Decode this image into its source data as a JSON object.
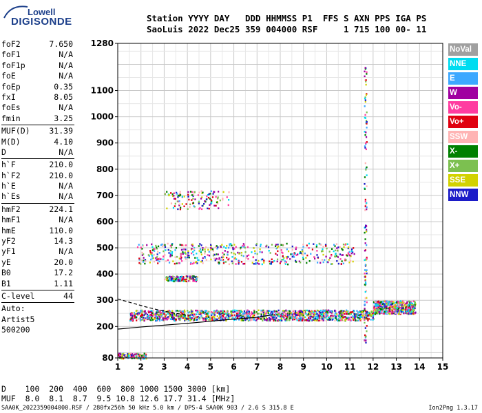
{
  "logo": {
    "top": "Lowell",
    "main": "DIGISONDE"
  },
  "header": {
    "line1": "Station YYYY DAY   DDD HHMMSS P1  FFS S AXN PPS IGA PS",
    "line2": "SaoLuis 2022 Dec25 359 004000 RSF     1 715 100 00- 11"
  },
  "params": {
    "group1": [
      {
        "key": "foF2",
        "value": "7.650"
      },
      {
        "key": "foF1",
        "value": "N/A"
      },
      {
        "key": "foF1p",
        "value": "N/A"
      },
      {
        "key": "foE",
        "value": "N/A"
      },
      {
        "key": "foEp",
        "value": "0.35"
      },
      {
        "key": "fxI",
        "value": "8.05"
      },
      {
        "key": "foEs",
        "value": "N/A"
      },
      {
        "key": "fmin",
        "value": "3.25"
      }
    ],
    "group2": [
      {
        "key": "MUF(D)",
        "value": "31.39"
      },
      {
        "key": "M(D)",
        "value": "4.10"
      },
      {
        "key": "D",
        "value": "N/A"
      }
    ],
    "group3": [
      {
        "key": "h`F",
        "value": "210.0"
      },
      {
        "key": "h`F2",
        "value": "210.0"
      },
      {
        "key": "h`E",
        "value": "N/A"
      },
      {
        "key": "h`Es",
        "value": "N/A"
      }
    ],
    "group4": [
      {
        "key": "hmF2",
        "value": "224.1"
      },
      {
        "key": "hmF1",
        "value": "N/A"
      },
      {
        "key": "hmE",
        "value": "110.0"
      },
      {
        "key": "yF2",
        "value": "14.3"
      },
      {
        "key": "yF1",
        "value": "N/A"
      },
      {
        "key": "yE",
        "value": "20.0"
      },
      {
        "key": "B0",
        "value": "17.2"
      },
      {
        "key": "B1",
        "value": "1.11"
      }
    ],
    "clevel": {
      "key": "C-level",
      "value": "44"
    },
    "auto": [
      "Auto:",
      "Artist5",
      "500200"
    ]
  },
  "legend": [
    {
      "label": "NoVal",
      "color": "#a0a0a0"
    },
    {
      "label": "NNE",
      "color": "#00dcf0"
    },
    {
      "label": "E",
      "color": "#3ca8ff"
    },
    {
      "label": "W",
      "color": "#a000a0"
    },
    {
      "label": "Vo-",
      "color": "#ff3ca0"
    },
    {
      "label": "Vo+",
      "color": "#e00010"
    },
    {
      "label": "SSW",
      "color": "#ffb4b4"
    },
    {
      "label": "X-",
      "color": "#008000"
    },
    {
      "label": "X+",
      "color": "#7cc050"
    },
    {
      "label": "SSE",
      "color": "#d2d200"
    },
    {
      "label": "NNW",
      "color": "#1c1cc8"
    }
  ],
  "bottom": {
    "d_line": "D    100  200  400  600  800 1000 1500 3000 [km]",
    "muf_line": "MUF  8.0  8.1  8.7  9.5 10.8 12.6 17.7 31.4 [MHz]"
  },
  "footer": {
    "left": "SAA0K_2022359004000.RSF / 280fx256h 50 kHz 5.0 km / DPS-4 SAA0K 903 / 2.6 S 315.8 E",
    "right": "Ion2Png 1.3.17"
  },
  "chart_data": {
    "type": "scatter",
    "x_ticks": [
      1,
      2,
      3,
      4,
      5,
      6,
      7,
      8,
      9,
      10,
      11,
      12,
      13,
      14,
      15
    ],
    "y_ticks": [
      80,
      200,
      300,
      400,
      500,
      600,
      700,
      800,
      900,
      1000,
      1100,
      1280
    ],
    "xlim": [
      1,
      15
    ],
    "ylim": [
      80,
      1280
    ],
    "grid": true,
    "trace_regions": [
      {
        "name": "F lower trace",
        "x": [
          1.5,
          12.0
        ],
        "y": [
          225,
          265
        ],
        "density": "high"
      },
      {
        "name": "F2 upper trace",
        "x": [
          12.0,
          13.8
        ],
        "y": [
          250,
          300
        ],
        "density": "medium"
      },
      {
        "name": "second hop",
        "x": [
          1.8,
          11.2
        ],
        "y": [
          440,
          520
        ],
        "density": "medium"
      },
      {
        "name": "third hop",
        "x": [
          3.0,
          5.8
        ],
        "y": [
          650,
          720
        ],
        "density": "low"
      },
      {
        "name": "spread 400",
        "x": [
          3.0,
          4.4
        ],
        "y": [
          375,
          395
        ],
        "density": "low"
      },
      {
        "name": "low echoes",
        "x": [
          1.0,
          2.2
        ],
        "y": [
          80,
          100
        ],
        "density": "low"
      },
      {
        "name": "interference line",
        "x": [
          11.6,
          11.7
        ],
        "y": [
          140,
          1200
        ],
        "density": "low"
      }
    ],
    "profile_curves": [
      {
        "name": "lower",
        "points": [
          [
            1.0,
            190
          ],
          [
            2,
            198
          ],
          [
            3,
            205
          ],
          [
            4,
            212
          ],
          [
            5,
            220
          ],
          [
            6,
            228
          ],
          [
            7,
            235
          ],
          [
            7.7,
            245
          ]
        ]
      },
      {
        "name": "upper dashed",
        "points": [
          [
            1.0,
            305
          ],
          [
            1.6,
            290
          ],
          [
            2.2,
            275
          ],
          [
            2.8,
            262
          ],
          [
            3.5,
            250
          ],
          [
            4.2,
            242
          ]
        ]
      }
    ]
  }
}
